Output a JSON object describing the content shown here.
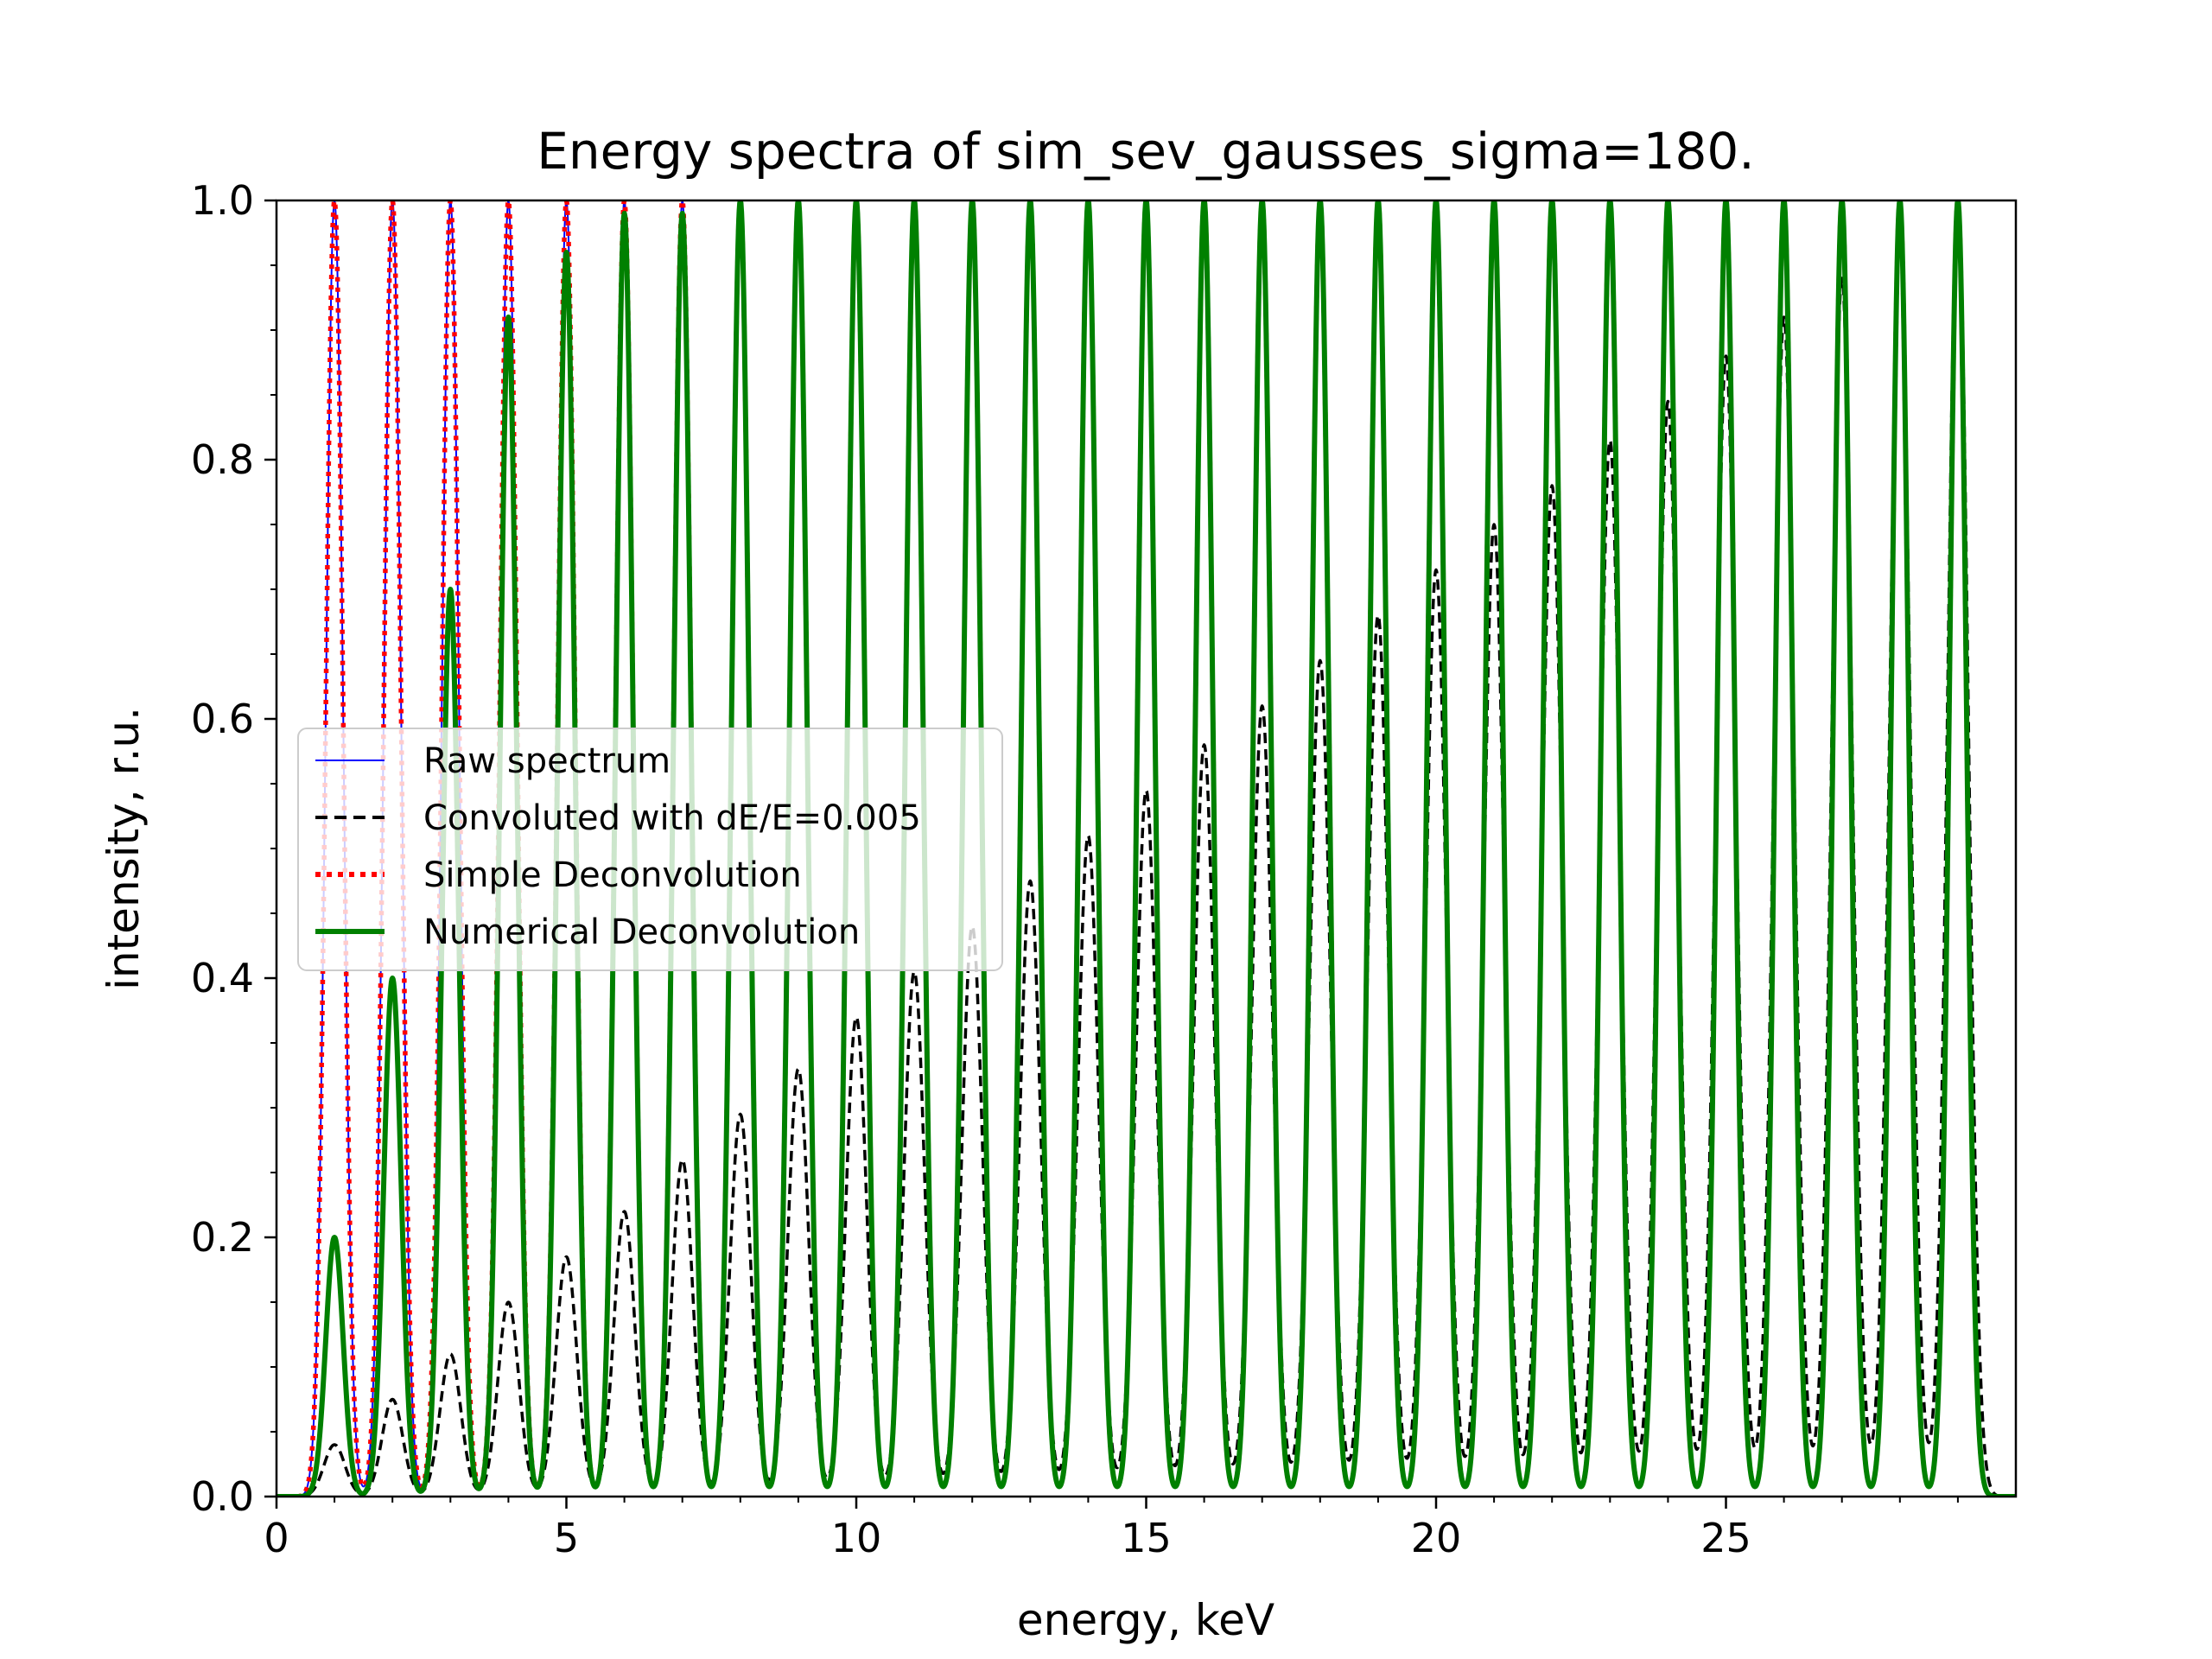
{
  "chart_data": {
    "type": "line",
    "title": "Energy spectra of sim_sev_gausses_sigma=180.",
    "xlabel": "energy, keV",
    "ylabel": "intensity, r.u.",
    "xlim": [
      0,
      30
    ],
    "ylim": [
      0,
      1
    ],
    "x_ticks": [
      "0",
      "5",
      "10",
      "15",
      "20",
      "25"
    ],
    "y_ticks": [
      "0.0",
      "0.2",
      "0.4",
      "0.6",
      "0.8",
      "1.0"
    ],
    "grid": false,
    "legend_position": "center-left",
    "peak_energies_keV": [
      1,
      2,
      3,
      4,
      5,
      6,
      7,
      8,
      9,
      10,
      11,
      12,
      13,
      14,
      15,
      16,
      17,
      18,
      19,
      20,
      21,
      22,
      23,
      24,
      25,
      26,
      27,
      28,
      29
    ],
    "series": [
      {
        "name": "Raw spectrum",
        "style": "solid-thin",
        "color": "#0000ff",
        "peak_values": [
          1,
          1,
          1,
          1,
          1,
          1,
          1,
          1,
          1,
          1,
          1,
          1,
          1,
          1,
          1,
          1,
          1,
          1,
          1,
          1,
          1,
          1,
          1,
          1,
          1,
          1,
          1,
          1,
          1
        ]
      },
      {
        "name": "Convoluted with dE/E=0.005",
        "style": "dashed",
        "color": "#000000",
        "peak_values": [
          0.04,
          0.075,
          0.11,
          0.15,
          0.185,
          0.22,
          0.26,
          0.295,
          0.33,
          0.37,
          0.405,
          0.44,
          0.475,
          0.51,
          0.545,
          0.58,
          0.61,
          0.645,
          0.68,
          0.715,
          0.75,
          0.78,
          0.815,
          0.845,
          0.88,
          0.91,
          0.94,
          0.97,
          1.0
        ]
      },
      {
        "name": "Simple Deconvolution",
        "style": "dotted",
        "color": "#ff0000",
        "peak_values": [
          1,
          1,
          1,
          1,
          1,
          1,
          1,
          1,
          1,
          1,
          1,
          1,
          1,
          1,
          1,
          1,
          1,
          1,
          1,
          1,
          1,
          1,
          1,
          1,
          1,
          1,
          1,
          1,
          1
        ]
      },
      {
        "name": "Numerical Deconvolution",
        "style": "solid-thick",
        "color": "#008000",
        "peak_values": [
          0.2,
          0.4,
          0.7,
          0.91,
          0.96,
          0.99,
          0.99,
          1,
          1,
          1,
          1,
          1,
          1,
          1,
          1,
          1,
          1,
          1,
          1,
          1,
          1,
          1,
          1,
          1,
          1,
          1,
          1,
          1,
          1
        ]
      }
    ]
  }
}
